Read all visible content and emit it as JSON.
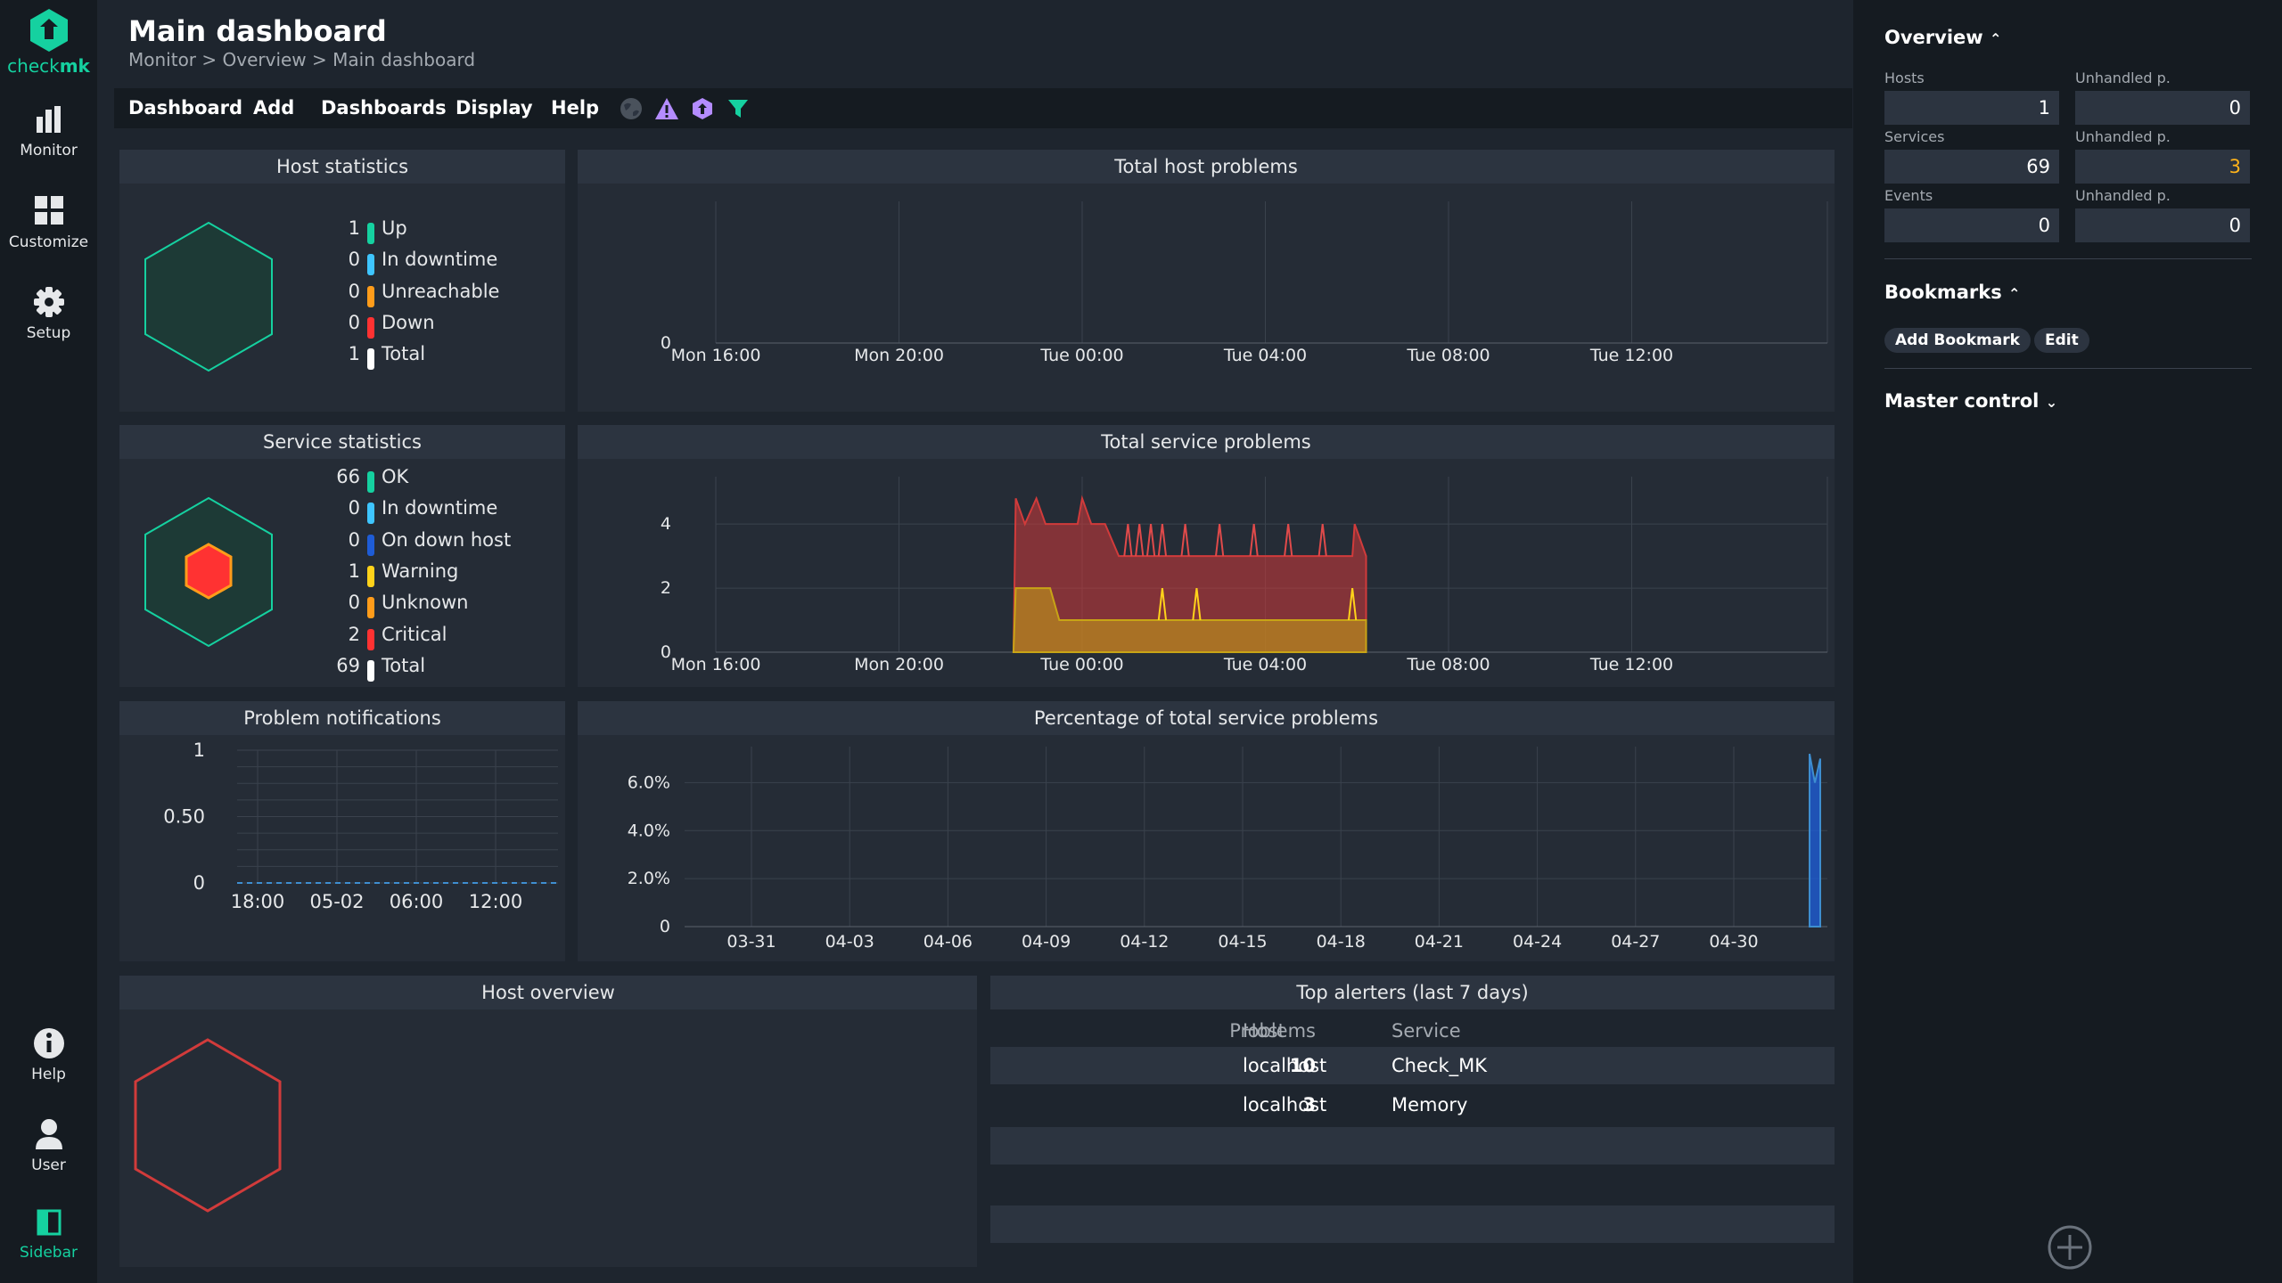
{
  "nav": {
    "logo_text_1": "check",
    "logo_text_2": "mk",
    "monitor": "Monitor",
    "customize": "Customize",
    "setup": "Setup",
    "help": "Help",
    "user": "User",
    "sidebar": "Sidebar"
  },
  "header": {
    "title": "Main dashboard",
    "breadcrumb": "Monitor > Overview > Main dashboard"
  },
  "menu": {
    "dashboard": "Dashboard",
    "add": "Add",
    "dashboards": "Dashboards",
    "display": "Display",
    "help": "Help",
    "icons": [
      "globe-icon",
      "warning-icon",
      "checkmk-icon",
      "filter-icon"
    ]
  },
  "host_statistics": {
    "title": "Host statistics",
    "rows": [
      {
        "num": "1",
        "label": "Up",
        "color": "#15d1a0"
      },
      {
        "num": "0",
        "label": "In downtime",
        "color": "#3ec5ff"
      },
      {
        "num": "0",
        "label": "Unreachable",
        "color": "#ff9c1a"
      },
      {
        "num": "0",
        "label": "Down",
        "color": "#ff3232"
      },
      {
        "num": "1",
        "label": "Total",
        "color": "#ffffff"
      }
    ]
  },
  "service_statistics": {
    "title": "Service statistics",
    "rows": [
      {
        "num": "66",
        "label": "OK",
        "color": "#15d1a0"
      },
      {
        "num": "0",
        "label": "In downtime",
        "color": "#3ec5ff"
      },
      {
        "num": "0",
        "label": "On down host",
        "color": "#1e5cd6"
      },
      {
        "num": "1",
        "label": "Warning",
        "color": "#ffd21a"
      },
      {
        "num": "0",
        "label": "Unknown",
        "color": "#ff9c1a"
      },
      {
        "num": "2",
        "label": "Critical",
        "color": "#ff3232"
      },
      {
        "num": "69",
        "label": "Total",
        "color": "#ffffff"
      }
    ]
  },
  "total_host_problems": {
    "title": "Total host problems",
    "chart_data": {
      "type": "area",
      "x": [
        "Mon 16:00",
        "Mon 20:00",
        "Tue 00:00",
        "Tue 04:00",
        "Tue 08:00",
        "Tue 12:00"
      ],
      "y_ticks": [
        "0"
      ],
      "series": []
    }
  },
  "total_service_problems": {
    "title": "Total service problems",
    "chart_data": {
      "type": "area",
      "x_ticks": [
        "Mon 16:00",
        "Mon 20:00",
        "Tue 00:00",
        "Tue 04:00",
        "Tue 08:00",
        "Tue 12:00"
      ],
      "y_ticks": [
        "0",
        "2",
        "4"
      ],
      "ylim": [
        0,
        5.2
      ],
      "series": [
        {
          "color": "#d13b3b",
          "values_hours": [
            [
              6.5,
              0
            ],
            [
              6.55,
              4.8
            ],
            [
              6.75,
              4
            ],
            [
              7.0,
              4.8
            ],
            [
              7.2,
              4
            ],
            [
              7.9,
              4
            ],
            [
              8.0,
              4.8
            ],
            [
              8.2,
              4
            ],
            [
              8.5,
              4
            ],
            [
              8.8,
              3
            ],
            [
              13.9,
              3
            ],
            [
              13.95,
              4
            ],
            [
              14.2,
              3
            ]
          ]
        },
        {
          "color": "#c8a416",
          "values_hours": [
            [
              6.5,
              0
            ],
            [
              6.55,
              2
            ],
            [
              6.75,
              2
            ],
            [
              7.3,
              2
            ],
            [
              7.5,
              1
            ],
            [
              14.2,
              1
            ]
          ]
        }
      ]
    }
  },
  "problem_notifications": {
    "title": "Problem notifications",
    "chart_data": {
      "type": "line",
      "x_ticks": [
        "18:00",
        "05-02",
        "06:00",
        "12:00"
      ],
      "y_ticks": [
        "0",
        "0.50",
        "1"
      ],
      "ylim": [
        0,
        1
      ],
      "series": [
        {
          "values": [
            0,
            0,
            0,
            0,
            0
          ]
        }
      ]
    }
  },
  "percentage_service_problems": {
    "title": "Percentage of total service problems",
    "chart_data": {
      "type": "area",
      "x_ticks": [
        "03-31",
        "04-03",
        "04-06",
        "04-09",
        "04-12",
        "04-15",
        "04-18",
        "04-21",
        "04-24",
        "04-27",
        "04-30"
      ],
      "y_ticks": [
        "0",
        "2.0%",
        "4.0%",
        "6.0%"
      ],
      "ylim": [
        0,
        7.5
      ],
      "series": [
        {
          "color": "#1e5cd6",
          "note": "last day only",
          "values": [
            7.2,
            6.0,
            7.0
          ]
        }
      ]
    }
  },
  "host_overview": {
    "title": "Host overview"
  },
  "top_alerters": {
    "title": "Top alerters (last 7 days)",
    "columns": [
      "Problems",
      "Host",
      "Service"
    ],
    "rows": [
      {
        "problems": "10",
        "host": "localhost",
        "service": "Check_MK"
      },
      {
        "problems": "3",
        "host": "localhost",
        "service": "Memory"
      }
    ]
  },
  "sidebar_right": {
    "overview": {
      "title": "Overview",
      "hosts_label": "Hosts",
      "hosts": "1",
      "hosts_unhandled_label": "Unhandled p.",
      "hosts_unhandled": "0",
      "services_label": "Services",
      "services": "69",
      "services_unhandled_label": "Unhandled p.",
      "services_unhandled": "3",
      "events_label": "Events",
      "events": "0",
      "events_unhandled_label": "Unhandled p.",
      "events_unhandled": "0"
    },
    "bookmarks": {
      "title": "Bookmarks",
      "add_label": "Add Bookmark",
      "edit_label": "Edit"
    },
    "master_control": {
      "title": "Master control"
    }
  }
}
